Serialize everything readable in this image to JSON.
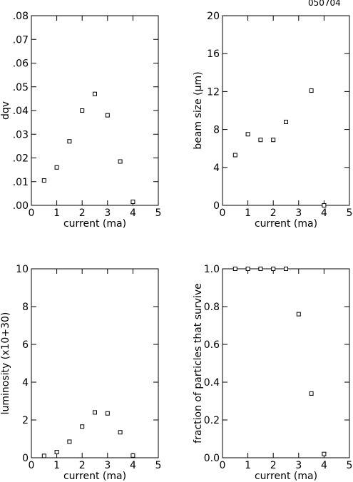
{
  "page": {
    "id_label": "050704"
  },
  "chart_data": [
    {
      "type": "scatter",
      "title": "",
      "xlabel": "current (ma)",
      "ylabel": "dqv",
      "xlim": [
        0,
        5
      ],
      "ylim": [
        0,
        0.08
      ],
      "xticks": [
        0,
        1,
        2,
        3,
        4,
        5
      ],
      "xtick_labels": [
        "0",
        "1",
        "2",
        "3",
        "4",
        "5"
      ],
      "yticks": [
        0,
        0.01,
        0.02,
        0.03,
        0.04,
        0.05,
        0.06,
        0.07,
        0.08
      ],
      "ytick_labels": [
        ".00",
        ".01",
        ".02",
        ".03",
        ".04",
        ".05",
        ".06",
        ".07",
        ".08"
      ],
      "marker": "open-square",
      "x": [
        0.5,
        1.0,
        1.5,
        2.0,
        2.5,
        3.0,
        3.5,
        4.0
      ],
      "y": [
        0.0105,
        0.016,
        0.027,
        0.04,
        0.047,
        0.038,
        0.0185,
        0.0015
      ]
    },
    {
      "type": "scatter",
      "title": "",
      "xlabel": "current (ma)",
      "ylabel": "beam size (μm)",
      "xlim": [
        0,
        5
      ],
      "ylim": [
        0,
        20
      ],
      "xticks": [
        0,
        1,
        2,
        3,
        4,
        5
      ],
      "xtick_labels": [
        "0",
        "1",
        "2",
        "3",
        "4",
        "5"
      ],
      "yticks": [
        0,
        4,
        8,
        12,
        16,
        20
      ],
      "ytick_labels": [
        "0",
        "4",
        "8",
        "12",
        "16",
        "20"
      ],
      "marker": "open-square",
      "x": [
        0.5,
        1.0,
        1.5,
        2.0,
        2.5,
        3.5,
        4.0
      ],
      "y": [
        5.3,
        7.5,
        6.9,
        6.9,
        8.8,
        12.1,
        0.0
      ]
    },
    {
      "type": "scatter",
      "title": "",
      "xlabel": "current (ma)",
      "ylabel": "luminosity   (x10+30)",
      "xlim": [
        0,
        5
      ],
      "ylim": [
        0,
        10
      ],
      "xticks": [
        0,
        1,
        2,
        3,
        4,
        5
      ],
      "xtick_labels": [
        "0",
        "1",
        "2",
        "3",
        "4",
        "5"
      ],
      "yticks": [
        0,
        2,
        4,
        6,
        8,
        10
      ],
      "ytick_labels": [
        "0",
        "2",
        "4",
        "6",
        "8",
        "10"
      ],
      "marker": "open-square",
      "x": [
        0.5,
        1.0,
        1.5,
        2.0,
        2.5,
        3.0,
        3.5,
        4.0
      ],
      "y": [
        0.1,
        0.3,
        0.85,
        1.65,
        2.4,
        2.35,
        1.35,
        0.12
      ]
    },
    {
      "type": "scatter",
      "title": "",
      "xlabel": "current (ma)",
      "ylabel": "fraction of particles that survive",
      "xlim": [
        0,
        5
      ],
      "ylim": [
        0,
        1
      ],
      "xticks": [
        0,
        1,
        2,
        3,
        4,
        5
      ],
      "xtick_labels": [
        "0",
        "1",
        "2",
        "3",
        "4",
        "5"
      ],
      "yticks": [
        0,
        0.2,
        0.4,
        0.6,
        0.8,
        1.0
      ],
      "ytick_labels": [
        "0.0",
        "0.2",
        "0.4",
        "0.6",
        "0.8",
        "1.0"
      ],
      "marker": "open-square",
      "x": [
        0.5,
        1.0,
        1.5,
        2.0,
        2.5,
        3.0,
        3.5,
        4.0
      ],
      "y": [
        1.0,
        1.0,
        1.0,
        1.0,
        1.0,
        0.76,
        0.34,
        0.02
      ]
    }
  ]
}
